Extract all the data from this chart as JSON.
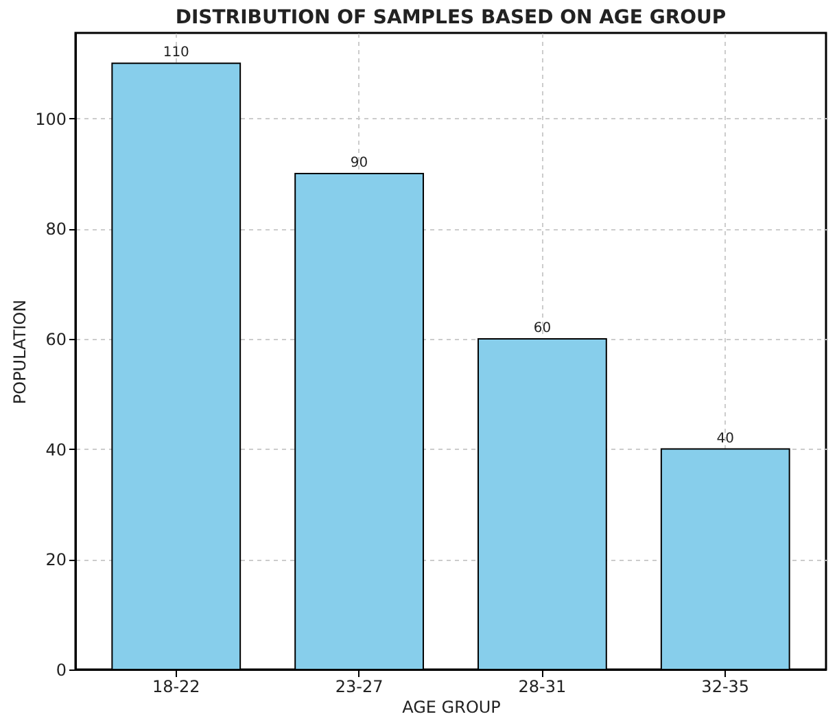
{
  "chart_data": {
    "type": "bar",
    "title": "DISTRIBUTION OF SAMPLES BASED ON AGE GROUP",
    "xlabel": "AGE GROUP",
    "ylabel": "POPULATION",
    "categories": [
      "18-22",
      "23-27",
      "28-31",
      "32-35"
    ],
    "values": [
      110,
      90,
      60,
      40
    ],
    "color": "#87ceeb",
    "ylim": [
      0,
      115.5
    ],
    "yticks": [
      0,
      20,
      40,
      60,
      80,
      100
    ],
    "grid": true,
    "data_labels": true
  }
}
